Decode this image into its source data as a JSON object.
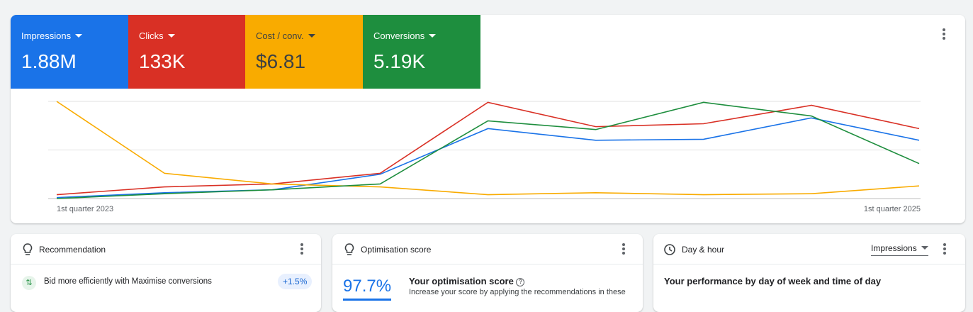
{
  "metrics": [
    {
      "label": "Impressions",
      "value": "1.88M"
    },
    {
      "label": "Clicks",
      "value": "133K"
    },
    {
      "label": "Cost / conv.",
      "value": "$6.81"
    },
    {
      "label": "Conversions",
      "value": "5.19K"
    }
  ],
  "chart_data": {
    "type": "line",
    "categories": [
      "1st quarter 2023",
      null,
      null,
      null,
      null,
      null,
      null,
      null,
      "1st quarter 2025"
    ],
    "ylim": [
      0,
      100
    ],
    "series": [
      {
        "name": "Impressions",
        "color": "#1a73e8",
        "values": [
          1,
          6,
          9,
          25,
          72,
          60,
          61,
          83,
          60
        ]
      },
      {
        "name": "Clicks",
        "color": "#d93025",
        "values": [
          4,
          12,
          15,
          26,
          99,
          74,
          77,
          96,
          72
        ]
      },
      {
        "name": "Cost / conv.",
        "color": "#f9ab00",
        "values": [
          100,
          26,
          15,
          12,
          4,
          6,
          4,
          5,
          13
        ]
      },
      {
        "name": "Conversions",
        "color": "#1e8e3e",
        "values": [
          0,
          5,
          9,
          15,
          80,
          71,
          99,
          85,
          36
        ]
      }
    ]
  },
  "cards": {
    "recommendation": {
      "title": "Recommendation",
      "item": "Bid more efficiently with Maximise conversions",
      "badge": "+1.5%"
    },
    "optimisation": {
      "title": "Optimisation score",
      "score": "97.7%",
      "heading": "Your optimisation score",
      "text": "Increase your score by applying the recommendations in these"
    },
    "day_hour": {
      "title": "Day & hour",
      "dropdown": "Impressions",
      "heading": "Your performance by day of week and time of day"
    }
  }
}
